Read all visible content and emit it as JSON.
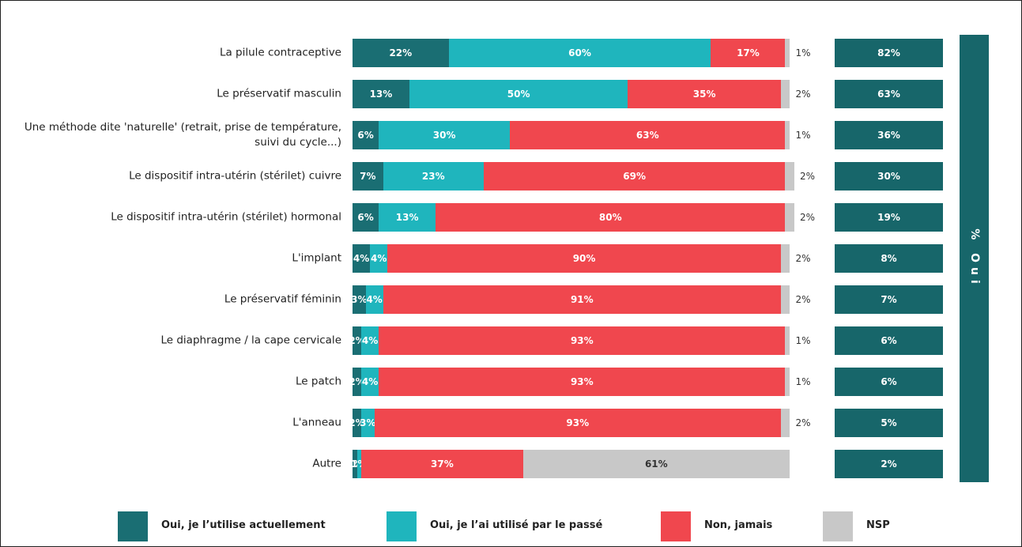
{
  "chart_data": {
    "type": "bar",
    "orientation": "horizontal",
    "stacked": true,
    "categories": [
      "La pilule contraceptive",
      "Le préservatif masculin",
      "Une méthode dite 'naturelle' (retrait, prise de température, suivi du cycle...)",
      "Le dispositif intra-utérin (stérilet) cuivre",
      "Le dispositif intra-utérin (stérilet) hormonal",
      "L'implant",
      "Le préservatif féminin",
      "Le diaphragme / la cape cervicale",
      "Le patch",
      "L'anneau",
      "Autre"
    ],
    "xlim": [
      0,
      100
    ],
    "series": [
      {
        "name": "Oui, je l’utilise actuellement",
        "color": "#1a6e73",
        "values": [
          22,
          13,
          6,
          7,
          6,
          4,
          3,
          2,
          2,
          2,
          1
        ],
        "value_labels": [
          "22%",
          "13%",
          "6%",
          "7%",
          "6%",
          "4%",
          "3%",
          "2%",
          "2%",
          "2%",
          "1%"
        ]
      },
      {
        "name": "Oui, je l’ai utilisé par le passé",
        "color": "#1fb5bd",
        "values": [
          60,
          50,
          30,
          23,
          13,
          4,
          4,
          4,
          4,
          3,
          1
        ],
        "value_labels": [
          "60%",
          "50%",
          "30%",
          "23%",
          "13%",
          "4%",
          "4%",
          "4%",
          "4%",
          "3%",
          "1%"
        ]
      },
      {
        "name": "Non, jamais",
        "color": "#f0474e",
        "values": [
          17,
          35,
          63,
          69,
          80,
          90,
          91,
          93,
          93,
          93,
          37
        ],
        "value_labels": [
          "17%",
          "35%",
          "63%",
          "69%",
          "80%",
          "90%",
          "91%",
          "93%",
          "93%",
          "93%",
          "37%"
        ]
      },
      {
        "name": "NSP",
        "color": "#c8c8c8",
        "values": [
          1,
          2,
          1,
          2,
          2,
          2,
          2,
          1,
          1,
          2,
          61
        ],
        "value_labels": [
          "1%",
          "2%",
          "1%",
          "2%",
          "2%",
          "2%",
          "2%",
          "1%",
          "1%",
          "2%",
          "61%"
        ]
      }
    ],
    "summary": {
      "title": "% Oui",
      "color": "#17666a",
      "values": [
        82,
        63,
        36,
        30,
        19,
        8,
        7,
        6,
        6,
        5,
        2
      ],
      "value_labels": [
        "82%",
        "63%",
        "36%",
        "30%",
        "19%",
        "8%",
        "7%",
        "6%",
        "6%",
        "5%",
        "2%"
      ]
    }
  }
}
